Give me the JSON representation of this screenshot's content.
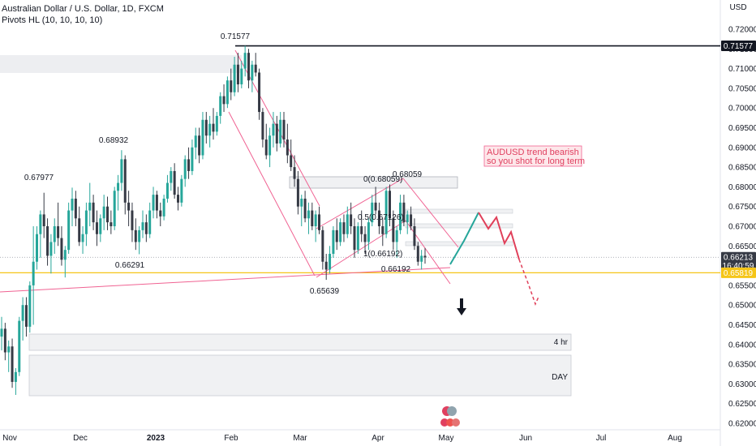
{
  "header": {
    "title": "Australian Dollar / U.S. Dollar, 1D, FXCM",
    "indicator": "Pivots HL (10, 10, 10, 10)"
  },
  "chart_data": {
    "type": "candlestick",
    "currency": "USD",
    "ylim": [
      0.6185,
      0.7235
    ],
    "y_ticks": [
      "0.72000",
      "0.71500",
      "0.71000",
      "0.70500",
      "0.70000",
      "0.69500",
      "0.69000",
      "0.68500",
      "0.68000",
      "0.67500",
      "0.67000",
      "0.66500",
      "0.66000",
      "0.65500",
      "0.65000",
      "0.64500",
      "0.64000",
      "0.63500",
      "0.63000",
      "0.62500",
      "0.62000"
    ],
    "x_ticks": [
      "Nov",
      "Dec",
      "2023",
      "Feb",
      "Mar",
      "Apr",
      "May",
      "Jun",
      "Jul",
      "Aug"
    ],
    "price_badges": {
      "high": "0.71577",
      "current": "0.66213",
      "countdown": "16:40:59",
      "support": "0.65819"
    },
    "pivot_labels": [
      "0.71577",
      "0.68932",
      "0.67977",
      "0.66291",
      "0.65639",
      "0.68059",
      "0.66192"
    ],
    "fib_labels": [
      "0(0.68059)",
      "0.5(0.67126)",
      "1(0.66192)"
    ],
    "zones": [
      "4 hr",
      "DAY"
    ],
    "annotation": [
      "AUDUSD trend bearish",
      "so you shot for long term"
    ],
    "colors": {
      "up": "#26a69a",
      "down": "#363a45",
      "channel": "#f06292",
      "support": "#f5c518",
      "projection_up": "#26a69a",
      "projection_down": "#e0405a"
    },
    "candles": [
      [
        0.642,
        0.647,
        0.6385,
        0.644
      ],
      [
        0.644,
        0.6455,
        0.636,
        0.638
      ],
      [
        0.638,
        0.641,
        0.633,
        0.6395
      ],
      [
        0.6395,
        0.6415,
        0.629,
        0.6305
      ],
      [
        0.6305,
        0.634,
        0.6272,
        0.633
      ],
      [
        0.633,
        0.647,
        0.632,
        0.646
      ],
      [
        0.646,
        0.652,
        0.641,
        0.65
      ],
      [
        0.65,
        0.652,
        0.642,
        0.6445
      ],
      [
        0.6445,
        0.656,
        0.643,
        0.655
      ],
      [
        0.655,
        0.67,
        0.645,
        0.661
      ],
      [
        0.661,
        0.67,
        0.659,
        0.668
      ],
      [
        0.668,
        0.674,
        0.662,
        0.673
      ],
      [
        0.673,
        0.6785,
        0.667,
        0.67
      ],
      [
        0.67,
        0.672,
        0.66,
        0.6625
      ],
      [
        0.6625,
        0.668,
        0.658,
        0.666
      ],
      [
        0.666,
        0.672,
        0.663,
        0.67
      ],
      [
        0.67,
        0.676,
        0.665,
        0.667
      ],
      [
        0.667,
        0.67,
        0.66,
        0.6615
      ],
      [
        0.6615,
        0.665,
        0.657,
        0.664
      ],
      [
        0.664,
        0.676,
        0.663,
        0.674
      ],
      [
        0.674,
        0.6798,
        0.67,
        0.677
      ],
      [
        0.677,
        0.679,
        0.67,
        0.672
      ],
      [
        0.672,
        0.675,
        0.665,
        0.666
      ],
      [
        0.666,
        0.67,
        0.663,
        0.668
      ],
      [
        0.668,
        0.676,
        0.665,
        0.674
      ],
      [
        0.674,
        0.681,
        0.67,
        0.676
      ],
      [
        0.676,
        0.678,
        0.669,
        0.671
      ],
      [
        0.671,
        0.674,
        0.665,
        0.668
      ],
      [
        0.668,
        0.673,
        0.666,
        0.672
      ],
      [
        0.672,
        0.678,
        0.669,
        0.675
      ],
      [
        0.675,
        0.6775,
        0.669,
        0.671
      ],
      [
        0.671,
        0.674,
        0.668,
        0.67
      ],
      [
        0.67,
        0.68,
        0.669,
        0.679
      ],
      [
        0.679,
        0.683,
        0.674,
        0.681
      ],
      [
        0.681,
        0.6893,
        0.679,
        0.687
      ],
      [
        0.687,
        0.688,
        0.673,
        0.676
      ],
      [
        0.676,
        0.679,
        0.67,
        0.674
      ],
      [
        0.674,
        0.676,
        0.666,
        0.669
      ],
      [
        0.669,
        0.672,
        0.664,
        0.666
      ],
      [
        0.666,
        0.67,
        0.6629,
        0.669
      ],
      [
        0.669,
        0.674,
        0.667,
        0.671
      ],
      [
        0.671,
        0.673,
        0.666,
        0.668
      ],
      [
        0.668,
        0.676,
        0.667,
        0.674
      ],
      [
        0.674,
        0.68,
        0.672,
        0.678
      ],
      [
        0.678,
        0.679,
        0.672,
        0.674
      ],
      [
        0.674,
        0.676,
        0.67,
        0.6725
      ],
      [
        0.6725,
        0.678,
        0.6715,
        0.677
      ],
      [
        0.677,
        0.683,
        0.676,
        0.681
      ],
      [
        0.681,
        0.685,
        0.679,
        0.684
      ],
      [
        0.684,
        0.686,
        0.677,
        0.678
      ],
      [
        0.678,
        0.68,
        0.674,
        0.676
      ],
      [
        0.676,
        0.683,
        0.675,
        0.682
      ],
      [
        0.682,
        0.688,
        0.68,
        0.687
      ],
      [
        0.687,
        0.69,
        0.682,
        0.684
      ],
      [
        0.684,
        0.692,
        0.683,
        0.69
      ],
      [
        0.69,
        0.695,
        0.687,
        0.693
      ],
      [
        0.693,
        0.695,
        0.686,
        0.688
      ],
      [
        0.688,
        0.699,
        0.687,
        0.697
      ],
      [
        0.697,
        0.699,
        0.691,
        0.693
      ],
      [
        0.693,
        0.698,
        0.69,
        0.696
      ],
      [
        0.696,
        0.7,
        0.692,
        0.694
      ],
      [
        0.694,
        0.699,
        0.693,
        0.698
      ],
      [
        0.698,
        0.704,
        0.696,
        0.703
      ],
      [
        0.703,
        0.706,
        0.699,
        0.701
      ],
      [
        0.701,
        0.708,
        0.7,
        0.707
      ],
      [
        0.707,
        0.71,
        0.702,
        0.704
      ],
      [
        0.704,
        0.713,
        0.703,
        0.711
      ],
      [
        0.711,
        0.714,
        0.704,
        0.706
      ],
      [
        0.706,
        0.712,
        0.705,
        0.71
      ],
      [
        0.71,
        0.7158,
        0.708,
        0.714
      ],
      [
        0.714,
        0.715,
        0.705,
        0.707
      ],
      [
        0.707,
        0.712,
        0.704,
        0.711
      ],
      [
        0.711,
        0.714,
        0.708,
        0.709
      ],
      [
        0.709,
        0.71,
        0.697,
        0.699
      ],
      [
        0.699,
        0.7,
        0.69,
        0.692
      ],
      [
        0.692,
        0.696,
        0.687,
        0.688
      ],
      [
        0.688,
        0.695,
        0.685,
        0.693
      ],
      [
        0.693,
        0.699,
        0.69,
        0.696
      ],
      [
        0.696,
        0.698,
        0.689,
        0.691
      ],
      [
        0.691,
        0.699,
        0.69,
        0.697
      ],
      [
        0.697,
        0.699,
        0.69,
        0.692
      ],
      [
        0.692,
        0.696,
        0.686,
        0.688
      ],
      [
        0.688,
        0.692,
        0.684,
        0.685
      ],
      [
        0.685,
        0.688,
        0.68,
        0.682
      ],
      [
        0.682,
        0.684,
        0.673,
        0.675
      ],
      [
        0.675,
        0.678,
        0.67,
        0.677
      ],
      [
        0.677,
        0.679,
        0.671,
        0.672
      ],
      [
        0.672,
        0.676,
        0.668,
        0.674
      ],
      [
        0.674,
        0.676,
        0.669,
        0.67
      ],
      [
        0.67,
        0.674,
        0.666,
        0.673
      ],
      [
        0.673,
        0.675,
        0.668,
        0.669
      ],
      [
        0.669,
        0.67,
        0.659,
        0.661
      ],
      [
        0.661,
        0.663,
        0.6564,
        0.659
      ],
      [
        0.659,
        0.665,
        0.658,
        0.663
      ],
      [
        0.663,
        0.67,
        0.662,
        0.669
      ],
      [
        0.669,
        0.672,
        0.664,
        0.666
      ],
      [
        0.666,
        0.672,
        0.665,
        0.671
      ],
      [
        0.671,
        0.673,
        0.666,
        0.668
      ],
      [
        0.668,
        0.675,
        0.667,
        0.673
      ],
      [
        0.673,
        0.676,
        0.668,
        0.67
      ],
      [
        0.67,
        0.672,
        0.662,
        0.664
      ],
      [
        0.664,
        0.671,
        0.663,
        0.67
      ],
      [
        0.67,
        0.674,
        0.666,
        0.668
      ],
      [
        0.668,
        0.67,
        0.663,
        0.666
      ],
      [
        0.666,
        0.672,
        0.664,
        0.671
      ],
      [
        0.671,
        0.678,
        0.67,
        0.676
      ],
      [
        0.676,
        0.68,
        0.673,
        0.674
      ],
      [
        0.674,
        0.676,
        0.668,
        0.67
      ],
      [
        0.67,
        0.672,
        0.665,
        0.668
      ],
      [
        0.668,
        0.68,
        0.667,
        0.679
      ],
      [
        0.679,
        0.6806,
        0.67,
        0.672
      ],
      [
        0.672,
        0.674,
        0.664,
        0.666
      ],
      [
        0.666,
        0.67,
        0.662,
        0.669
      ],
      [
        0.669,
        0.678,
        0.668,
        0.676
      ],
      [
        0.676,
        0.678,
        0.67,
        0.671
      ],
      [
        0.671,
        0.674,
        0.668,
        0.673
      ],
      [
        0.673,
        0.675,
        0.669,
        0.67
      ],
      [
        0.67,
        0.672,
        0.664,
        0.665
      ],
      [
        0.665,
        0.666,
        0.66,
        0.661
      ],
      [
        0.661,
        0.664,
        0.659,
        0.6625
      ],
      [
        0.6625,
        0.6645,
        0.6605,
        0.6621
      ]
    ]
  }
}
